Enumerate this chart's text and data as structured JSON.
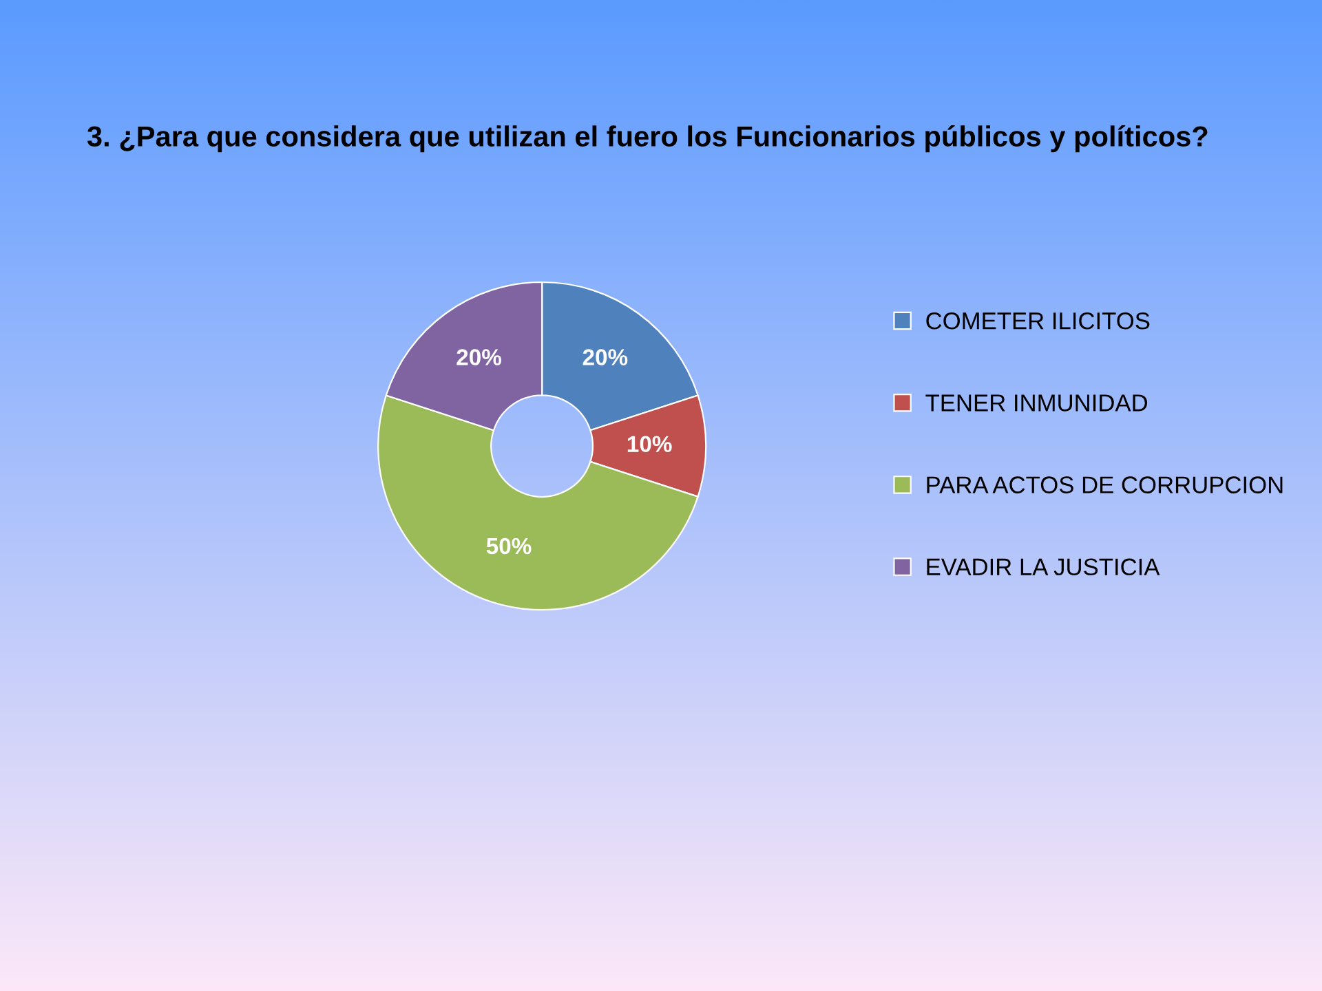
{
  "chart_data": {
    "type": "donut",
    "title": "3. ¿Para que considera que utilizan el fuero los Funcionarios públicos y políticos?",
    "categories": [
      "COMETER ILICITOS",
      "TENER INMUNIDAD",
      "PARA ACTOS DE CORRUPCION",
      "EVADIR LA JUSTICIA"
    ],
    "values": [
      20,
      10,
      50,
      20
    ],
    "value_labels": [
      "20%",
      "10%",
      "50%",
      "20%"
    ],
    "colors": [
      "#4f81bd",
      "#c0504d",
      "#9bbb59",
      "#8064a2"
    ],
    "legend": "right"
  }
}
